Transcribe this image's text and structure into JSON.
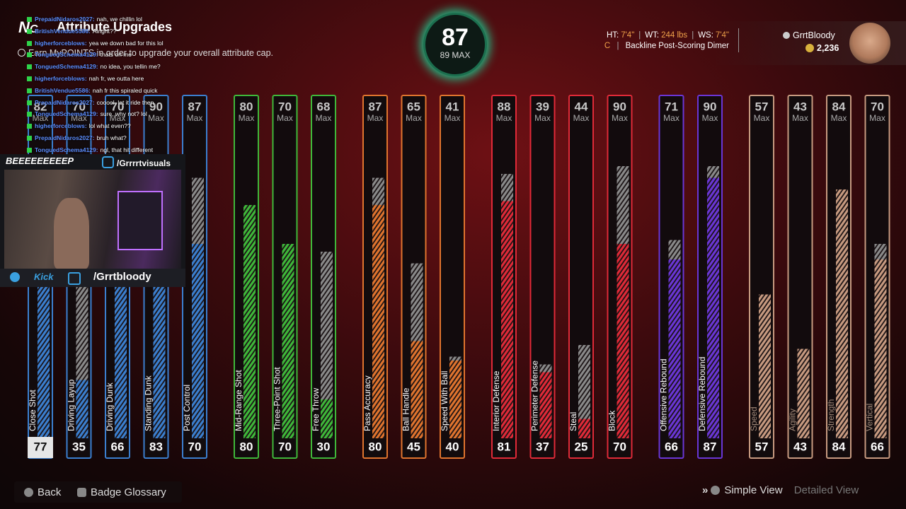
{
  "header": {
    "title": "Attribute Upgrades",
    "subtitle": "Earn MyPOINTS in order to upgrade your overall attribute cap."
  },
  "overall": {
    "value": "87",
    "max_label": "89 MAX"
  },
  "player": {
    "bio": [
      {
        "label": "HT:",
        "value": "7'4\""
      },
      {
        "label": "WT:",
        "value": "244 lbs"
      },
      {
        "label": "WS:",
        "value": "7'4\""
      }
    ],
    "position": "C",
    "archetype": "Backline Post-Scoring Dimer"
  },
  "account": {
    "name": "GrrtBloody",
    "vc": "2,236"
  },
  "max_label": "Max",
  "attributes": [
    {
      "name": "Close Shot",
      "current": 77,
      "max": 82,
      "color": "#3b7fcf",
      "selected": true
    },
    {
      "name": "Driving Layup",
      "current": 35,
      "max": 70,
      "color": "#3b7fcf"
    },
    {
      "name": "Driving Dunk",
      "current": 66,
      "max": 70,
      "color": "#3b7fcf"
    },
    {
      "name": "Standing Dunk",
      "current": 83,
      "max": 90,
      "color": "#3b7fcf"
    },
    {
      "name": "Post Control",
      "current": 70,
      "max": 87,
      "color": "#3b7fcf"
    },
    {
      "name": "Mid-Range Shot",
      "current": 80,
      "max": 80,
      "color": "#3fb83a"
    },
    {
      "name": "Three-Point Shot",
      "current": 70,
      "max": 70,
      "color": "#3fb83a"
    },
    {
      "name": "Free Throw",
      "current": 30,
      "max": 68,
      "color": "#3fb83a"
    },
    {
      "name": "Pass Accuracy",
      "current": 80,
      "max": 87,
      "color": "#e0742e"
    },
    {
      "name": "Ball Handle",
      "current": 45,
      "max": 65,
      "color": "#e0742e"
    },
    {
      "name": "Speed With Ball",
      "current": 40,
      "max": 41,
      "color": "#e0742e"
    },
    {
      "name": "Interior Defense",
      "current": 81,
      "max": 88,
      "color": "#e02a38"
    },
    {
      "name": "Perimeter Defense",
      "current": 37,
      "max": 39,
      "color": "#e02a38"
    },
    {
      "name": "Steal",
      "current": 25,
      "max": 44,
      "color": "#e02a38"
    },
    {
      "name": "Block",
      "current": 70,
      "max": 90,
      "color": "#e02a38"
    },
    {
      "name": "Offensive Rebound",
      "current": 66,
      "max": 71,
      "color": "#6a36d6"
    },
    {
      "name": "Defensive Rebound",
      "current": 87,
      "max": 90,
      "color": "#6a36d6"
    },
    {
      "name": "Speed",
      "current": 57,
      "max": 57,
      "color": "#c79a80"
    },
    {
      "name": "Agility",
      "current": 43,
      "max": 43,
      "color": "#c79a80"
    },
    {
      "name": "Strength",
      "current": 84,
      "max": 84,
      "color": "#c79a80"
    },
    {
      "name": "Vertical",
      "current": 66,
      "max": 70,
      "color": "#c79a80"
    }
  ],
  "chat": [
    {
      "user": "PrepaidNidaros2027:",
      "text": "nah, we chillin lol"
    },
    {
      "user": "BritishVendue5586:",
      "text": "Alright??"
    },
    {
      "user": "higherforceblows:",
      "text": "yea we down bad for this lol"
    },
    {
      "user": "TonguedSchema4129:",
      "text": "thats on me"
    },
    {
      "user": "TonguedSchema4129:",
      "text": "no idea, you tellin me?"
    },
    {
      "user": "higherforceblows:",
      "text": "nah fr, we outta here"
    },
    {
      "user": "BritishVendue5586:",
      "text": "nah fr this spiraled quick"
    },
    {
      "user": "PrepaidNidaros2027:",
      "text": "cooool, let it ride then"
    },
    {
      "user": "TonguedSchema4129:",
      "text": "sure, why not? lol"
    },
    {
      "user": "higherforceblows:",
      "text": "lol what even??"
    },
    {
      "user": "PrepaidNidaros2027:",
      "text": "bruh what?"
    },
    {
      "user": "TonguedSchema4129:",
      "text": "ngl, that hit different"
    }
  ],
  "stream": {
    "banner": "BEEEEEEEEEP",
    "instagram": "/Grrrrtvisuals",
    "kick": "Kick",
    "twitch": "/Grrtbloody"
  },
  "footer": {
    "back": "Back",
    "glossary": "Badge Glossary",
    "simple_view": "Simple View",
    "detailed_view": "Detailed View"
  }
}
